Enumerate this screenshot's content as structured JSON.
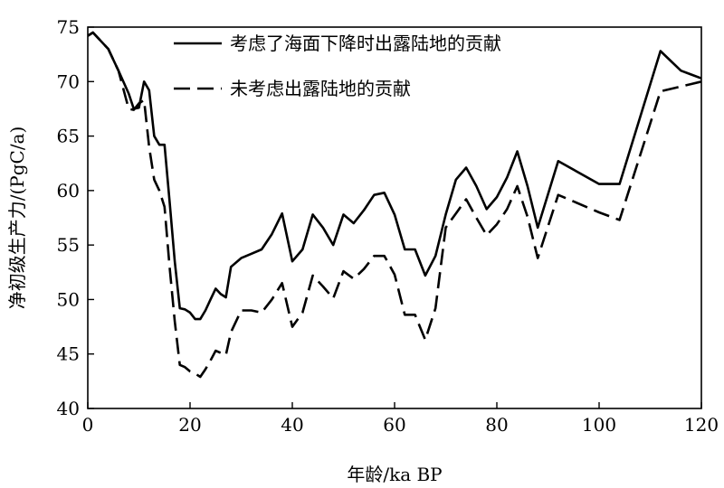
{
  "chart_data": {
    "type": "line",
    "xlabel": "年龄/ka BP",
    "ylabel": "净初级生产力/(PgC/a)",
    "xlim": [
      0,
      120
    ],
    "ylim": [
      40,
      75
    ],
    "xticks": [
      0,
      20,
      40,
      60,
      80,
      100,
      120
    ],
    "yticks": [
      40,
      45,
      50,
      55,
      60,
      65,
      70,
      75
    ],
    "legend_position": "top",
    "grid": false,
    "series": [
      {
        "name": "考虑了海面下降时出露陆地的贡献",
        "style": "solid",
        "color": "#000000",
        "x": [
          0,
          1,
          4,
          6,
          8,
          9,
          10,
          11,
          12,
          13,
          14,
          15,
          16,
          17,
          18,
          19,
          20,
          21,
          22,
          23,
          24,
          25,
          26,
          27,
          28,
          30,
          32,
          34,
          36,
          38,
          40,
          42,
          44,
          46,
          48,
          50,
          52,
          54,
          56,
          58,
          60,
          62,
          64,
          66,
          68,
          70,
          72,
          74,
          76,
          78,
          80,
          82,
          84,
          86,
          88,
          92,
          100,
          104,
          112,
          116,
          120
        ],
        "values": [
          74.2,
          74.5,
          73.0,
          71.0,
          68.9,
          67.5,
          67.6,
          70.0,
          69.2,
          65.0,
          64.2,
          64.2,
          59.0,
          53.5,
          49.2,
          49.1,
          48.8,
          48.2,
          48.2,
          49.0,
          50.0,
          51.0,
          50.5,
          50.2,
          53.0,
          53.8,
          54.2,
          54.6,
          56.0,
          57.9,
          53.5,
          54.6,
          57.8,
          56.6,
          55.0,
          57.8,
          57.0,
          58.2,
          59.6,
          59.8,
          57.8,
          54.6,
          54.6,
          52.2,
          54.0,
          57.8,
          61.0,
          62.1,
          60.4,
          58.3,
          59.4,
          61.2,
          63.6,
          60.4,
          56.6,
          62.7,
          60.6,
          60.6,
          72.8,
          71.0,
          70.3
        ]
      },
      {
        "name": "未考虑出露陆地的贡献",
        "style": "dashed",
        "color": "#000000",
        "x": [
          0,
          1,
          4,
          6,
          8,
          9,
          10,
          11,
          12,
          13,
          14,
          15,
          16,
          17,
          18,
          19,
          20,
          21,
          22,
          23,
          24,
          25,
          26,
          27,
          28,
          30,
          32,
          34,
          36,
          38,
          40,
          42,
          44,
          46,
          48,
          50,
          52,
          54,
          56,
          58,
          60,
          62,
          64,
          66,
          68,
          70,
          72,
          74,
          76,
          78,
          80,
          82,
          84,
          86,
          88,
          92,
          100,
          104,
          112,
          120
        ],
        "values": [
          74.2,
          74.5,
          73.0,
          71.0,
          67.5,
          67.4,
          68.0,
          68.3,
          64.0,
          61.0,
          60.0,
          58.5,
          53.0,
          48.0,
          44.0,
          43.8,
          43.4,
          43.2,
          42.9,
          43.6,
          44.4,
          45.3,
          45.1,
          44.9,
          47.0,
          49.0,
          49.0,
          48.8,
          50.0,
          51.5,
          47.5,
          48.8,
          52.2,
          51.2,
          50.1,
          52.6,
          51.9,
          52.8,
          54.0,
          54.0,
          52.3,
          48.6,
          48.6,
          46.3,
          49.2,
          56.6,
          57.9,
          59.2,
          57.5,
          55.9,
          56.9,
          58.3,
          60.4,
          57.6,
          53.8,
          59.6,
          58.0,
          57.3,
          69.1,
          70.0
        ]
      }
    ]
  }
}
